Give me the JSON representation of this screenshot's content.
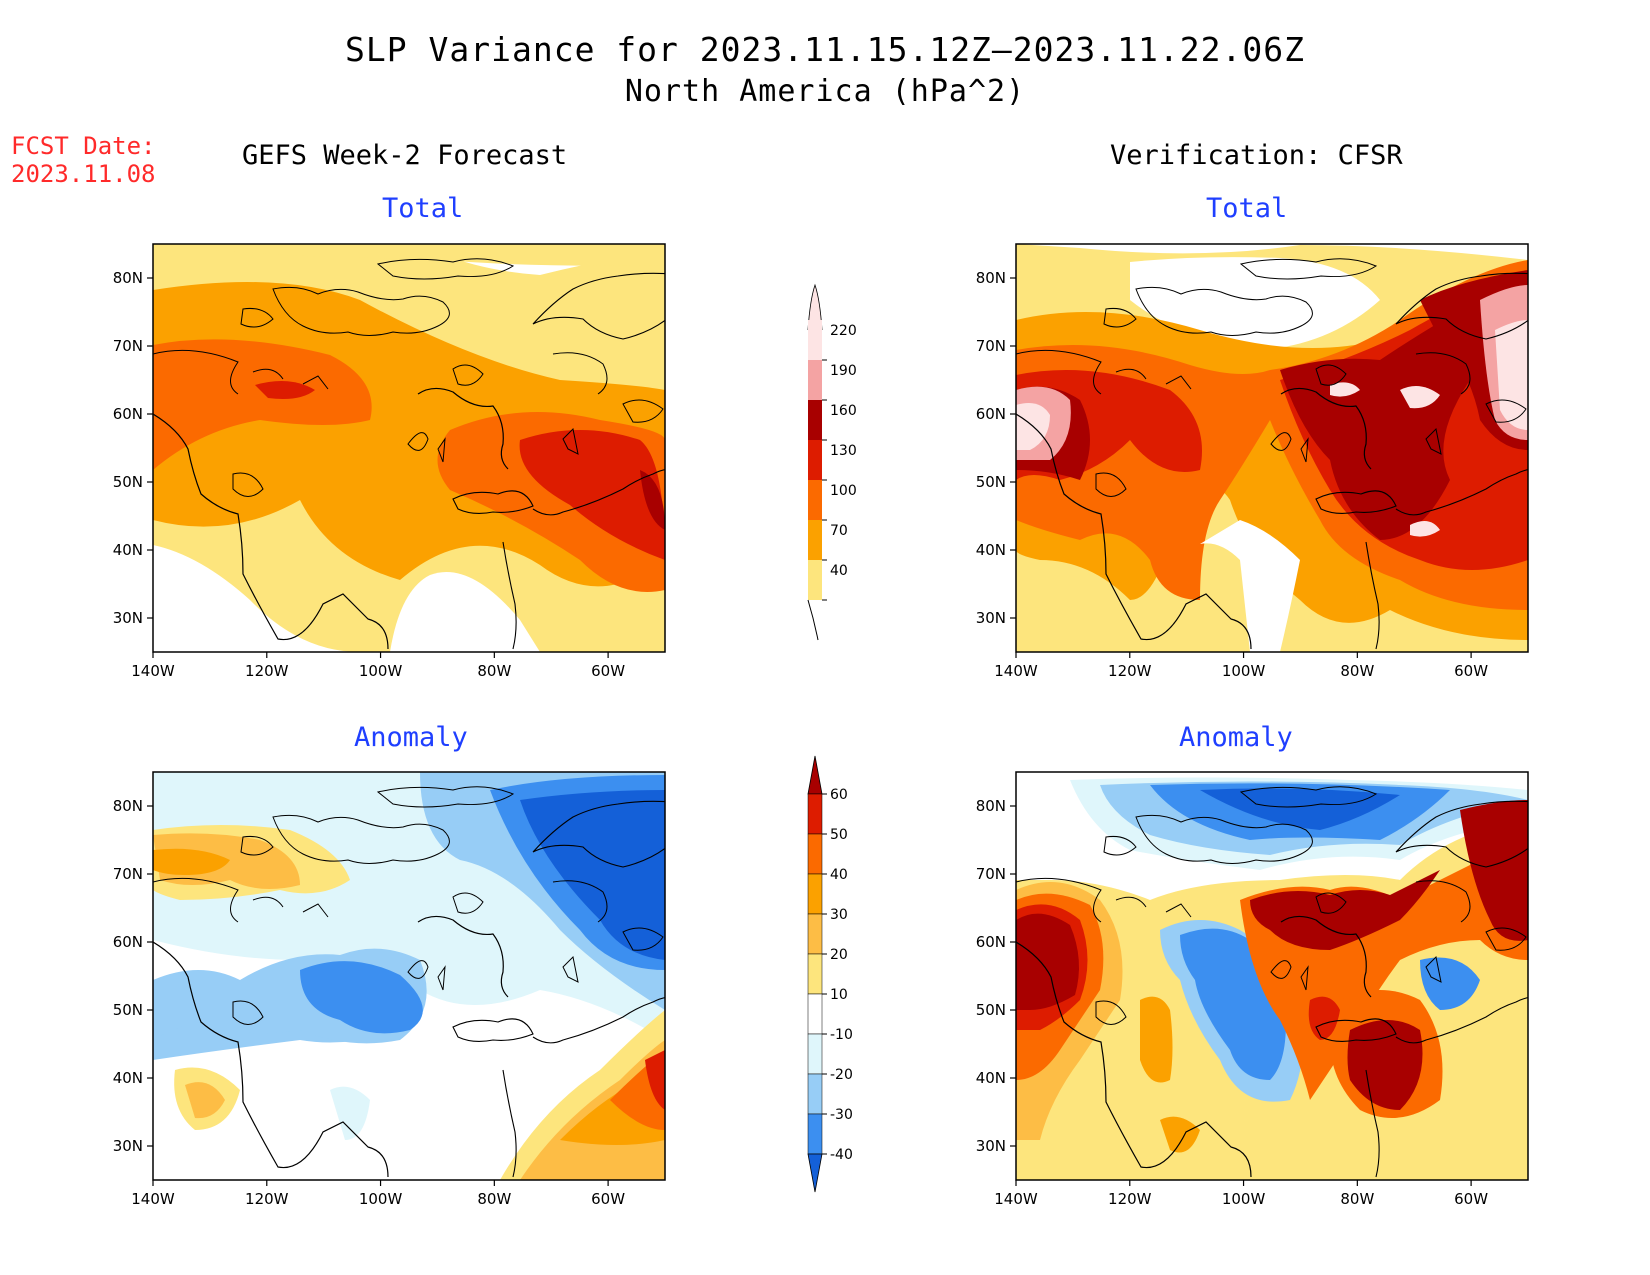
{
  "title": "SLP Variance for 2023.11.15.12Z–2023.11.22.06Z",
  "subtitle": "North America (hPa^2)",
  "fcst_label": "FCST Date:",
  "fcst_date": "2023.11.08",
  "columns": {
    "left": "GEFS Week-2 Forecast",
    "right": "Verification: CFSR"
  },
  "panels": [
    {
      "title": "Total",
      "column": "GEFS Week-2 Forecast",
      "field": "total"
    },
    {
      "title": "Total",
      "column": "Verification: CFSR",
      "field": "total"
    },
    {
      "title": "Anomaly",
      "column": "GEFS Week-2 Forecast",
      "field": "anomaly"
    },
    {
      "title": "Anomaly",
      "column": "Verification: CFSR",
      "field": "anomaly"
    }
  ],
  "map": {
    "lon_range": [
      -140,
      -50
    ],
    "lat_range": [
      25,
      85
    ],
    "lat_ticks": [
      "80N",
      "70N",
      "60N",
      "50N",
      "40N",
      "30N"
    ],
    "lon_ticks": [
      "140W",
      "120W",
      "100W",
      "80W",
      "60W"
    ],
    "lat_values": [
      80,
      70,
      60,
      50,
      40,
      30
    ],
    "lon_values": [
      -140,
      -120,
      -100,
      -80,
      -60
    ]
  },
  "total_colorbar": {
    "levels": [
      "220",
      "190",
      "160",
      "130",
      "100",
      "70",
      "40"
    ],
    "colors": [
      "#fde4e4",
      "#f4a3a3",
      "#a80000",
      "#dd1c00",
      "#fb6a00",
      "#fba100",
      "#fde57d"
    ]
  },
  "anomaly_colorbar": {
    "levels": [
      "60",
      "50",
      "40",
      "30",
      "20",
      "10",
      "-10",
      "-20",
      "-30",
      "-40"
    ],
    "colors": [
      "#a80000",
      "#dd1c00",
      "#fb6a00",
      "#fba100",
      "#fdbd45",
      "#fde57d",
      "#ffffff",
      "#dff6fb",
      "#97cdf6",
      "#3c8ff0",
      "#1460d8"
    ]
  }
}
